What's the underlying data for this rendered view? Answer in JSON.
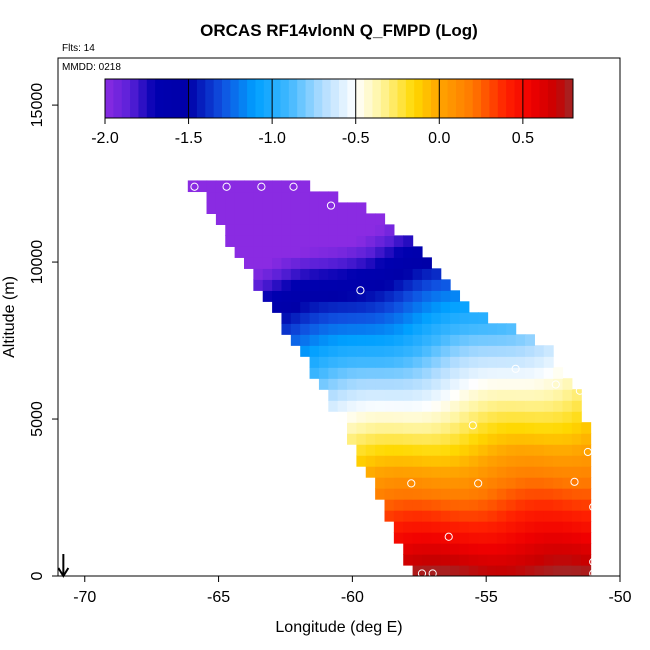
{
  "chart_data": {
    "type": "heatmap",
    "title": "ORCAS RF14vlonN Q_FMPD (Log)",
    "xlabel": "Longitude (deg E)",
    "ylabel": "Altitude (m)",
    "xlim": [
      -71,
      -50
    ],
    "ylim": [
      0,
      16500
    ],
    "x_ticks": [
      -70,
      -65,
      -60,
      -55,
      -50
    ],
    "x_tick_labels": [
      "-70",
      "-65",
      "-60",
      "-55",
      "-50"
    ],
    "y_ticks": [
      0,
      5000,
      10000,
      15000
    ],
    "y_tick_labels": [
      "0",
      "5000",
      "10000",
      "15000"
    ],
    "annotations": {
      "flights": "Flts: 14",
      "date": "MMDD: 0218"
    },
    "colorbar": {
      "range": [
        -2.0,
        0.8
      ],
      "ticks": [
        -2.0,
        -1.5,
        -1.0,
        -0.5,
        0.0,
        0.5
      ],
      "tick_labels": [
        "-2.0",
        "-1.5",
        "-1.0",
        "-0.5",
        "0.0",
        "0.5"
      ],
      "stops": [
        [
          -2.0,
          "#8a2be2"
        ],
        [
          -1.85,
          "#5a20d8"
        ],
        [
          -1.7,
          "#0000b0"
        ],
        [
          -1.5,
          "#0000a8"
        ],
        [
          -1.3,
          "#1050e0"
        ],
        [
          -1.1,
          "#00a0ff"
        ],
        [
          -0.9,
          "#40b8ff"
        ],
        [
          -0.7,
          "#b0dcff"
        ],
        [
          -0.5,
          "#ffffff"
        ],
        [
          -0.35,
          "#fff5a0"
        ],
        [
          -0.15,
          "#ffd800"
        ],
        [
          0.0,
          "#ffa500"
        ],
        [
          0.2,
          "#ff7800"
        ],
        [
          0.4,
          "#ff2000"
        ],
        [
          0.55,
          "#f00000"
        ],
        [
          0.7,
          "#c80000"
        ],
        [
          0.8,
          "#a02828"
        ]
      ]
    },
    "field_model": {
      "description": "log10 Q_FMPD values over the sampled longitude-altitude region",
      "cell_deg": 0.35,
      "cell_m": 350,
      "envelope_left": [
        [
          0,
          -57.8
        ],
        [
          600,
          -58.0
        ],
        [
          2500,
          -59.0
        ],
        [
          5500,
          -60.8
        ],
        [
          8500,
          -63.0
        ],
        [
          10500,
          -64.5
        ],
        [
          12000,
          -65.5
        ],
        [
          12500,
          -66.2
        ]
      ],
      "envelope_right": [
        [
          0,
          -51.0
        ],
        [
          2000,
          -51.0
        ],
        [
          4000,
          -51.1
        ],
        [
          6000,
          -51.5
        ],
        [
          7500,
          -53.0
        ],
        [
          8500,
          -55.5
        ],
        [
          10500,
          -57.5
        ],
        [
          11800,
          -59.5
        ],
        [
          12500,
          -62.0
        ]
      ]
    },
    "series": [
      {
        "name": "observations",
        "points": [
          [
            -65.9,
            12400
          ],
          [
            -64.7,
            12400
          ],
          [
            -63.4,
            12400
          ],
          [
            -62.2,
            12400
          ],
          [
            -60.8,
            11800
          ],
          [
            -59.7,
            9100
          ],
          [
            -53.9,
            6600
          ],
          [
            -52.4,
            6100
          ],
          [
            -51.5,
            5900
          ],
          [
            -55.5,
            4800
          ],
          [
            -51.2,
            3950
          ],
          [
            -51.7,
            3000
          ],
          [
            -57.8,
            2950
          ],
          [
            -55.3,
            2950
          ],
          [
            -51.0,
            2200
          ],
          [
            -56.4,
            1250
          ],
          [
            -51.0,
            450
          ],
          [
            -57.4,
            80
          ],
          [
            -57.0,
            80
          ],
          [
            -51.0,
            80
          ]
        ]
      }
    ],
    "arrow_marker": {
      "x": -70.8,
      "from": 700,
      "to": 0
    }
  }
}
